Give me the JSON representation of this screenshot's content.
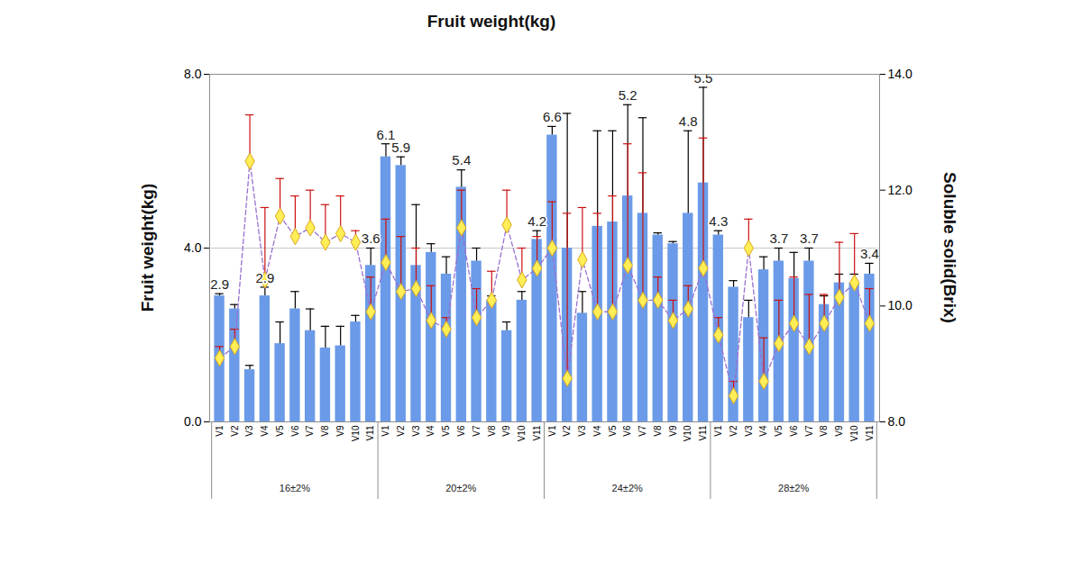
{
  "chart_data": {
    "type": "bar",
    "title": "Fruit weight(kg)",
    "categories": [
      "V1",
      "V2",
      "V3",
      "V4",
      "V5",
      "V6",
      "V7",
      "V8",
      "V9",
      "V10",
      "V11",
      "V1",
      "V2",
      "V3",
      "V4",
      "V5",
      "V6",
      "V7",
      "V8",
      "V9",
      "V10",
      "V11",
      "V1",
      "V2",
      "V3",
      "V4",
      "V5",
      "V6",
      "V7",
      "V8",
      "V9",
      "V10",
      "V11",
      "V1",
      "V2",
      "V3",
      "V4",
      "V5",
      "V6",
      "V7",
      "V8",
      "V9",
      "V10",
      "V11"
    ],
    "groups": [
      {
        "label": "16±2%",
        "count": 11
      },
      {
        "label": "20±2%",
        "count": 11
      },
      {
        "label": "24±2%",
        "count": 11
      },
      {
        "label": "28±2%",
        "count": 11
      }
    ],
    "ylim": [
      0,
      8
    ],
    "yticks": [
      {
        "value": 0,
        "label": "0.0"
      },
      {
        "value": 4,
        "label": "4.0"
      },
      {
        "value": 8,
        "label": "8.0"
      }
    ],
    "y2lim": [
      8,
      14
    ],
    "y2ticks": [
      {
        "value": 8,
        "label": "8.0"
      },
      {
        "value": 10,
        "label": "10.0"
      },
      {
        "value": 12,
        "label": "12.0"
      },
      {
        "value": 14,
        "label": "14.0"
      }
    ],
    "grid": true,
    "data_labels": true,
    "series": [
      {
        "name": "Fruit weight(kg)",
        "type": "bar",
        "color": "#6b9be8",
        "values": [
          2.9,
          2.6,
          1.2,
          2.9,
          1.8,
          2.6,
          2.1,
          1.7,
          1.75,
          2.3,
          3.6,
          6.1,
          5.9,
          3.6,
          3.9,
          3.4,
          5.4,
          3.7,
          2.8,
          2.1,
          2.8,
          4.2,
          6.6,
          4.0,
          2.5,
          4.5,
          4.6,
          5.2,
          4.8,
          4.3,
          4.1,
          4.8,
          5.5,
          4.3,
          3.1,
          2.4,
          3.5,
          3.7,
          3.3,
          3.7,
          2.7,
          3.2,
          3.2,
          3.4
        ],
        "errors": [
          0.05,
          0.1,
          0.1,
          0.2,
          0.5,
          0.4,
          0.5,
          0.5,
          0.45,
          0.15,
          0.4,
          0.3,
          0.2,
          1.4,
          0.2,
          0.4,
          0.4,
          0.3,
          0.1,
          0.2,
          0.2,
          0.2,
          0.2,
          3.1,
          0.5,
          2.2,
          2.1,
          2.1,
          2.2,
          0.05,
          0.05,
          1.9,
          2.2,
          0.1,
          0.15,
          0.4,
          0.3,
          0.3,
          0.6,
          0.3,
          0.2,
          0.2,
          0.2,
          0.25
        ],
        "value_labels": [
          "2.9",
          null,
          null,
          "2.9",
          null,
          null,
          null,
          null,
          null,
          null,
          "3.6",
          "6.1",
          "5.9",
          null,
          null,
          null,
          "5.4",
          null,
          null,
          null,
          null,
          "4.2",
          "6.6",
          null,
          null,
          null,
          null,
          "5.2",
          null,
          null,
          null,
          "4.8",
          "5.5",
          "4.3",
          null,
          null,
          null,
          "3.7",
          null,
          "3.7",
          null,
          null,
          null,
          "3.4"
        ]
      },
      {
        "name": "Soluble solid(Brix)",
        "type": "line",
        "axis": "y2",
        "color": "#9a6fd0",
        "marker": "diamond",
        "line_style": "dashed",
        "values": [
          9.1,
          9.3,
          12.5,
          10.45,
          11.55,
          11.2,
          11.35,
          11.1,
          11.25,
          11.1,
          9.9,
          10.75,
          10.25,
          10.3,
          9.75,
          9.6,
          11.35,
          9.8,
          10.1,
          11.4,
          10.45,
          10.65,
          11.0,
          8.75,
          10.8,
          9.9,
          9.9,
          10.7,
          10.1,
          10.1,
          9.75,
          9.95,
          10.65,
          9.5,
          8.45,
          11.0,
          8.7,
          9.35,
          9.7,
          9.3,
          9.7,
          10.15,
          10.4,
          9.7
        ],
        "errors": [
          0.2,
          0.3,
          0.8,
          1.25,
          0.65,
          0.7,
          0.65,
          0.65,
          0.65,
          0.2,
          0.6,
          0.75,
          0.95,
          0.7,
          0.6,
          0.2,
          0.65,
          0.5,
          0.5,
          0.6,
          0.55,
          0.55,
          0.8,
          2.85,
          0.9,
          1.7,
          2.0,
          2.1,
          2.2,
          0.4,
          0.35,
          0.4,
          2.25,
          0.3,
          0.25,
          0.5,
          0.75,
          0.75,
          0.8,
          0.9,
          0.5,
          0.95,
          0.85,
          0.6
        ]
      }
    ]
  }
}
